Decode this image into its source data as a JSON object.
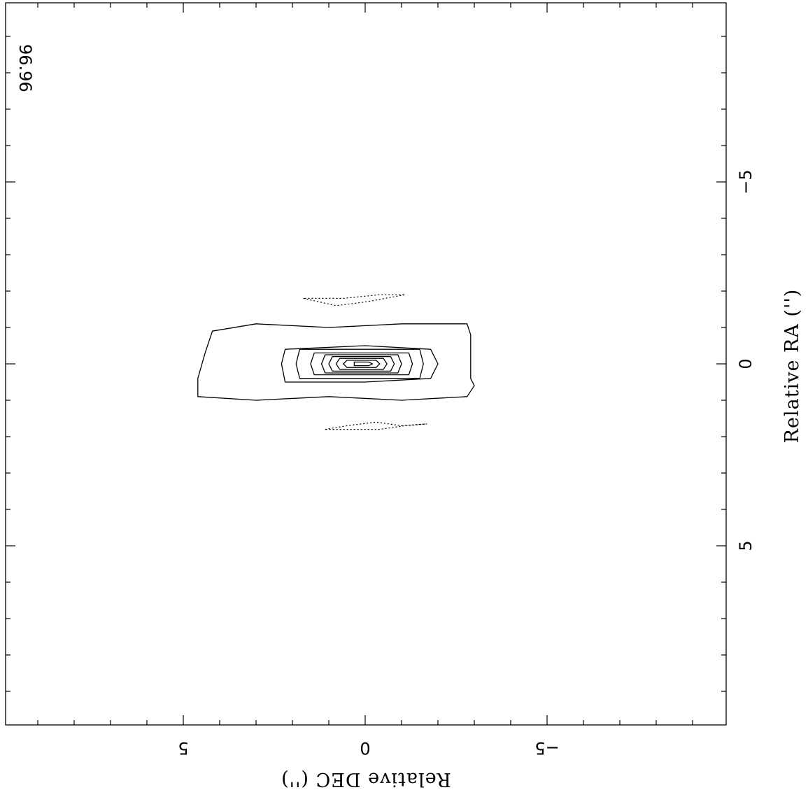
{
  "chart_data": {
    "type": "contour",
    "annotation": "96.96",
    "xlabel": "Relative RA ('')",
    "ylabel": "Relative DEC ('')",
    "x_ticks": [
      {
        "value": -5,
        "label": "−5"
      },
      {
        "value": 0,
        "label": "0"
      },
      {
        "value": 5,
        "label": "5"
      }
    ],
    "y_ticks": [
      {
        "value": 5,
        "label": "5"
      },
      {
        "value": 0,
        "label": "0"
      },
      {
        "value": -5,
        "label": "−5"
      }
    ],
    "xlim": [
      -9.8,
      10
    ],
    "ylim": [
      -9.9,
      10
    ],
    "grid": false,
    "positive_contours": [
      [
        [
          0.9,
          4.6
        ],
        [
          1.0,
          3.0
        ],
        [
          0.9,
          1.0
        ],
        [
          1.0,
          -1.0
        ],
        [
          0.9,
          -2.8
        ],
        [
          0.6,
          -3.0
        ],
        [
          0.4,
          -2.9
        ],
        [
          -0.8,
          -2.9
        ],
        [
          -1.1,
          -2.8
        ],
        [
          -1.1,
          -1.0
        ],
        [
          -1.0,
          1.0
        ],
        [
          -1.1,
          3.0
        ],
        [
          -0.9,
          4.2
        ],
        [
          -0.3,
          4.4
        ],
        [
          0.4,
          4.6
        ],
        [
          0.9,
          4.6
        ]
      ],
      [
        [
          0.5,
          2.2
        ],
        [
          0.5,
          0.0
        ],
        [
          0.4,
          -1.8
        ],
        [
          0.0,
          -2.0
        ],
        [
          -0.4,
          -1.8
        ],
        [
          -0.5,
          0.0
        ],
        [
          -0.4,
          2.2
        ],
        [
          0.0,
          2.3
        ],
        [
          0.5,
          2.2
        ]
      ],
      [
        [
          0.4,
          1.8
        ],
        [
          0.4,
          -1.5
        ],
        [
          0.0,
          -1.6
        ],
        [
          -0.4,
          -1.5
        ],
        [
          -0.4,
          1.8
        ],
        [
          0.0,
          1.9
        ],
        [
          0.4,
          1.8
        ]
      ],
      [
        [
          0.3,
          1.4
        ],
        [
          0.3,
          -1.2
        ],
        [
          0.0,
          -1.3
        ],
        [
          -0.3,
          -1.2
        ],
        [
          -0.3,
          1.4
        ],
        [
          0.0,
          1.5
        ],
        [
          0.3,
          1.4
        ]
      ],
      [
        [
          0.25,
          1.1
        ],
        [
          0.25,
          -0.9
        ],
        [
          0.0,
          -1.0
        ],
        [
          -0.25,
          -0.9
        ],
        [
          -0.25,
          1.1
        ],
        [
          0.0,
          1.2
        ],
        [
          0.25,
          1.1
        ]
      ],
      [
        [
          0.2,
          0.9
        ],
        [
          0.2,
          -0.7
        ],
        [
          0.0,
          -0.8
        ],
        [
          -0.2,
          -0.7
        ],
        [
          -0.2,
          0.9
        ],
        [
          0.0,
          1.0
        ],
        [
          0.2,
          0.9
        ]
      ],
      [
        [
          0.15,
          0.7
        ],
        [
          0.15,
          -0.5
        ],
        [
          0.0,
          -0.6
        ],
        [
          -0.15,
          -0.5
        ],
        [
          -0.15,
          0.7
        ],
        [
          0.0,
          0.8
        ],
        [
          0.15,
          0.7
        ]
      ],
      [
        [
          0.1,
          0.5
        ],
        [
          0.1,
          -0.3
        ],
        [
          0.0,
          -0.4
        ],
        [
          -0.1,
          -0.3
        ],
        [
          -0.1,
          0.5
        ],
        [
          0.0,
          0.6
        ],
        [
          0.1,
          0.5
        ]
      ],
      [
        [
          0.05,
          0.3
        ],
        [
          0.05,
          -0.1
        ],
        [
          0.0,
          -0.2
        ],
        [
          -0.05,
          -0.1
        ],
        [
          -0.05,
          0.3
        ],
        [
          0.0,
          0.3
        ],
        [
          0.05,
          0.3
        ]
      ]
    ],
    "negative_contours": [
      [
        [
          1.8,
          1.1
        ],
        [
          1.7,
          0.5
        ],
        [
          1.6,
          -0.3
        ],
        [
          1.7,
          -1.0
        ],
        [
          1.65,
          -1.7
        ],
        [
          1.7,
          -1.1
        ],
        [
          1.8,
          -0.4
        ],
        [
          1.8,
          0.5
        ],
        [
          1.8,
          1.1
        ]
      ],
      [
        [
          -1.8,
          1.7
        ],
        [
          -1.6,
          0.8
        ],
        [
          -1.7,
          0.0
        ],
        [
          -1.9,
          -1.1
        ],
        [
          -1.9,
          -0.4
        ],
        [
          -1.8,
          0.6
        ],
        [
          -1.8,
          1.7
        ]
      ]
    ]
  }
}
